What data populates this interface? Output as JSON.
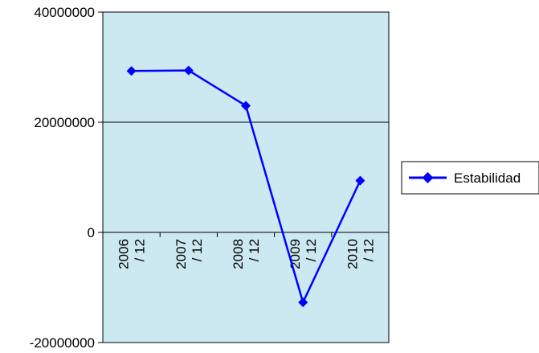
{
  "chart_data": {
    "type": "line",
    "categories": [
      "2006 / 12",
      "2007 / 12",
      "2008 / 12",
      "2009 / 12",
      "2010 / 12"
    ],
    "category_lines": [
      [
        "2006",
        "/ 12"
      ],
      [
        "2007",
        "/ 12"
      ],
      [
        "2008",
        "/ 12"
      ],
      [
        "2009",
        "/ 12"
      ],
      [
        "2010",
        "/ 12"
      ]
    ],
    "series": [
      {
        "name": "Estabilidad",
        "values": [
          29300000,
          29400000,
          23000000,
          -12700000,
          9400000
        ],
        "color": "#0000FF",
        "marker": "diamond"
      }
    ],
    "ylim": [
      -20000000,
      40000000
    ],
    "yticks": [
      -20000000,
      0,
      20000000,
      40000000
    ],
    "ytick_labels": [
      "-20000000",
      "0",
      "20000000",
      "40000000"
    ],
    "grid": true,
    "plot_background": "#CCE8F0",
    "legend_position": "right",
    "title": "",
    "xlabel": "",
    "ylabel": ""
  }
}
